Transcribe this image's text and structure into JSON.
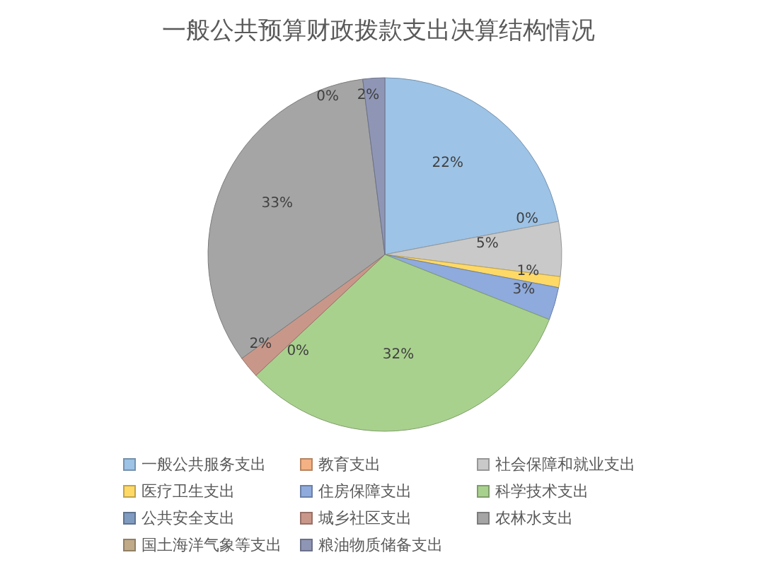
{
  "chart_data": {
    "type": "pie",
    "title": "一般公共预算财政拨款支出决算结构情况",
    "categories": [
      "一般公共服务支出",
      "教育支出",
      "社会保障和就业支出",
      "医疗卫生支出",
      "住房保障支出",
      "科学技术支出",
      "公共安全支出",
      "城乡社区支出",
      "农林水支出",
      "国土海洋气象等支出",
      "粮油物质储备支出"
    ],
    "values": [
      22,
      0,
      5,
      1,
      3,
      32,
      0,
      2,
      33,
      0,
      2
    ],
    "colors": [
      "#9dc3e6",
      "#f4b183",
      "#c9c9c9",
      "#ffd966",
      "#8faadc",
      "#a9d18e",
      "#7f9bc0",
      "#c9978a",
      "#a5a5a5",
      "#c0aa88",
      "#8f96b5"
    ],
    "value_labels": [
      "22%",
      "0%",
      "5%",
      "1%",
      "3%",
      "32%",
      "0%",
      "2%",
      "33%",
      "0%",
      "2%"
    ],
    "legend": "bottom"
  }
}
